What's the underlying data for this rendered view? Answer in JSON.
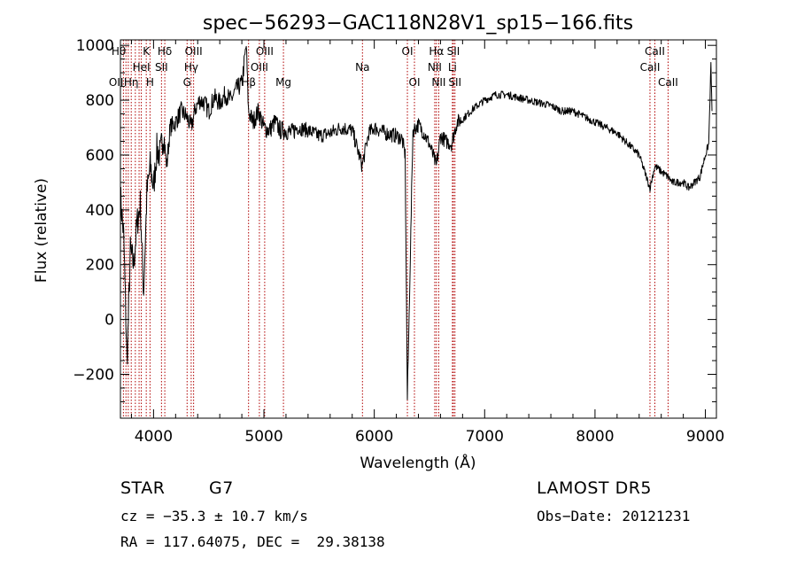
{
  "chart_data": {
    "type": "line",
    "title": "spec−56293−GAC118N28V1_sp15−166.fits",
    "xlabel": "Wavelength (Å)",
    "ylabel": "Flux (relative)",
    "xlim": [
      3700,
      9100
    ],
    "ylim": [
      -360,
      1020
    ],
    "xticks": [
      4000,
      5000,
      6000,
      7000,
      8000,
      9000
    ],
    "yticks": [
      -200,
      0,
      200,
      400,
      600,
      800,
      1000
    ],
    "ytick_labels": [
      "−200",
      "0",
      "200",
      "400",
      "600",
      "800",
      "1000"
    ],
    "series": [
      {
        "x": [
          3700,
          3730,
          3760,
          3790,
          3820,
          3850,
          3880,
          3910,
          3940,
          3970,
          4000,
          4030,
          4060,
          4090,
          4120,
          4150,
          4200,
          4250,
          4300,
          4340,
          4380,
          4420,
          4460,
          4500,
          4550,
          4600,
          4650,
          4700,
          4750,
          4800,
          4840,
          4860,
          4900,
          4950,
          5000,
          5050,
          5100,
          5150,
          5200,
          5250,
          5300,
          5400,
          5500,
          5600,
          5700,
          5800,
          5890,
          5950,
          6000,
          6100,
          6200,
          6250,
          6280,
          6300,
          6350,
          6400,
          6450,
          6500,
          6563,
          6600,
          6650,
          6700,
          6750,
          6800,
          6900,
          7000,
          7100,
          7200,
          7300,
          7400,
          7500,
          7600,
          7700,
          7800,
          7900,
          8000,
          8100,
          8200,
          8300,
          8400,
          8498,
          8542,
          8600,
          8662,
          8700,
          8800,
          8850,
          8900,
          8950,
          9000,
          9030,
          9050,
          9060
        ],
        "y": [
          450,
          300,
          -160,
          250,
          200,
          350,
          420,
          100,
          460,
          560,
          480,
          620,
          600,
          680,
          560,
          700,
          720,
          760,
          740,
          700,
          770,
          800,
          790,
          760,
          810,
          790,
          820,
          800,
          840,
          860,
          1000,
          760,
          720,
          760,
          700,
          690,
          720,
          690,
          690,
          680,
          700,
          690,
          670,
          680,
          700,
          690,
          560,
          680,
          700,
          680,
          670,
          660,
          600,
          -290,
          690,
          710,
          680,
          640,
          560,
          670,
          650,
          640,
          720,
          730,
          770,
          800,
          820,
          820,
          810,
          800,
          790,
          780,
          760,
          760,
          740,
          720,
          700,
          680,
          640,
          600,
          480,
          560,
          540,
          520,
          500,
          500,
          480,
          500,
          520,
          600,
          640,
          930,
          760
        ]
      }
    ],
    "lines": [
      {
        "x": 3727,
        "label": "OII",
        "row": 2,
        "align": "end"
      },
      {
        "x": 3750,
        "label": "Hθ",
        "row": 0,
        "align": "end"
      },
      {
        "x": 3771,
        "label": "",
        "row": 0,
        "align": "middle"
      },
      {
        "x": 3798,
        "label": "Hη",
        "row": 2,
        "align": "middle"
      },
      {
        "x": 3835,
        "label": "",
        "row": 0,
        "align": "middle"
      },
      {
        "x": 3869,
        "label": "",
        "row": 0,
        "align": "middle"
      },
      {
        "x": 3889,
        "label": "HeI",
        "row": 1,
        "align": "middle"
      },
      {
        "x": 3934,
        "label": "K",
        "row": 0,
        "align": "middle"
      },
      {
        "x": 3968,
        "label": "H",
        "row": 2,
        "align": "middle"
      },
      {
        "x": 4072,
        "label": "SII",
        "row": 1,
        "align": "middle"
      },
      {
        "x": 4102,
        "label": "Hδ",
        "row": 0,
        "align": "middle"
      },
      {
        "x": 4304,
        "label": "G",
        "row": 2,
        "align": "middle"
      },
      {
        "x": 4341,
        "label": "Hγ",
        "row": 1,
        "align": "middle"
      },
      {
        "x": 4363,
        "label": "OIII",
        "row": 0,
        "align": "middle"
      },
      {
        "x": 4861,
        "label": "Hβ",
        "row": 2,
        "align": "middle"
      },
      {
        "x": 4959,
        "label": "OIII",
        "row": 1,
        "align": "middle"
      },
      {
        "x": 5007,
        "label": "OIII",
        "row": 0,
        "align": "middle"
      },
      {
        "x": 5177,
        "label": "Mg",
        "row": 2,
        "align": "middle"
      },
      {
        "x": 5893,
        "label": "Na",
        "row": 1,
        "align": "middle"
      },
      {
        "x": 6300,
        "label": "OI",
        "row": 0,
        "align": "middle"
      },
      {
        "x": 6364,
        "label": "OI",
        "row": 2,
        "align": "middle"
      },
      {
        "x": 6548,
        "label": "NII",
        "row": 1,
        "align": "middle"
      },
      {
        "x": 6563,
        "label": "Hα",
        "row": 0,
        "align": "middle"
      },
      {
        "x": 6584,
        "label": "NII",
        "row": 2,
        "align": "middle"
      },
      {
        "x": 6708,
        "label": "Li",
        "row": 1,
        "align": "middle"
      },
      {
        "x": 6717,
        "label": "SII",
        "row": 0,
        "align": "middle"
      },
      {
        "x": 6731,
        "label": "SII",
        "row": 2,
        "align": "middle"
      },
      {
        "x": 8498,
        "label": "CaII",
        "row": 1,
        "align": "middle"
      },
      {
        "x": 8542,
        "label": "CaII",
        "row": 0,
        "align": "middle"
      },
      {
        "x": 8662,
        "label": "CaII",
        "row": 2,
        "align": "middle"
      }
    ]
  },
  "info": {
    "object_type": "STAR",
    "subclass": "G7",
    "cz": "cz = −35.3 ± 10.7 km/s",
    "coords": "RA = 117.64075, DEC =  29.38138",
    "survey": "LAMOST DR5",
    "obs_date": "Obs−Date: 20121231"
  }
}
